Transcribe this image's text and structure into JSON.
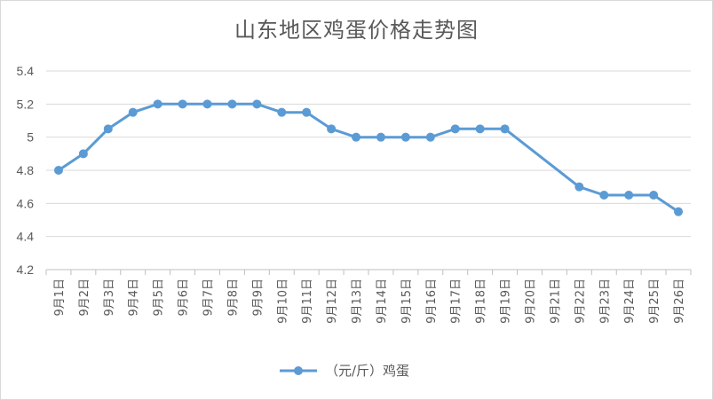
{
  "chart_data": {
    "type": "line",
    "title": "山东地区鸡蛋价格走势图",
    "xlabel": "",
    "ylabel": "",
    "ylim": [
      4.2,
      5.4
    ],
    "yticks": [
      "4.2",
      "4.4",
      "4.6",
      "4.8",
      "5",
      "5.2",
      "5.4"
    ],
    "grid": true,
    "legend_position": "bottom",
    "categories": [
      "9月1日",
      "9月2日",
      "9月3日",
      "9月4日",
      "9月5日",
      "9月6日",
      "9月7日",
      "9月8日",
      "9月9日",
      "9月10日",
      "9月11日",
      "9月12日",
      "9月13日",
      "9月14日",
      "9月15日",
      "9月16日",
      "9月17日",
      "9月18日",
      "9月19日",
      "9月20日",
      "9月21日",
      "9月22日",
      "9月23日",
      "9月24日",
      "9月25日",
      "9月26日"
    ],
    "series": [
      {
        "name": "（元/斤）鸡蛋",
        "color": "#5b9bd5",
        "values": [
          4.8,
          4.9,
          5.05,
          5.15,
          5.2,
          5.2,
          5.2,
          5.2,
          5.2,
          5.15,
          5.15,
          5.05,
          5.0,
          5.0,
          5.0,
          5.0,
          5.05,
          5.05,
          5.05,
          null,
          null,
          4.7,
          4.65,
          4.65,
          4.65,
          4.55
        ]
      }
    ]
  }
}
